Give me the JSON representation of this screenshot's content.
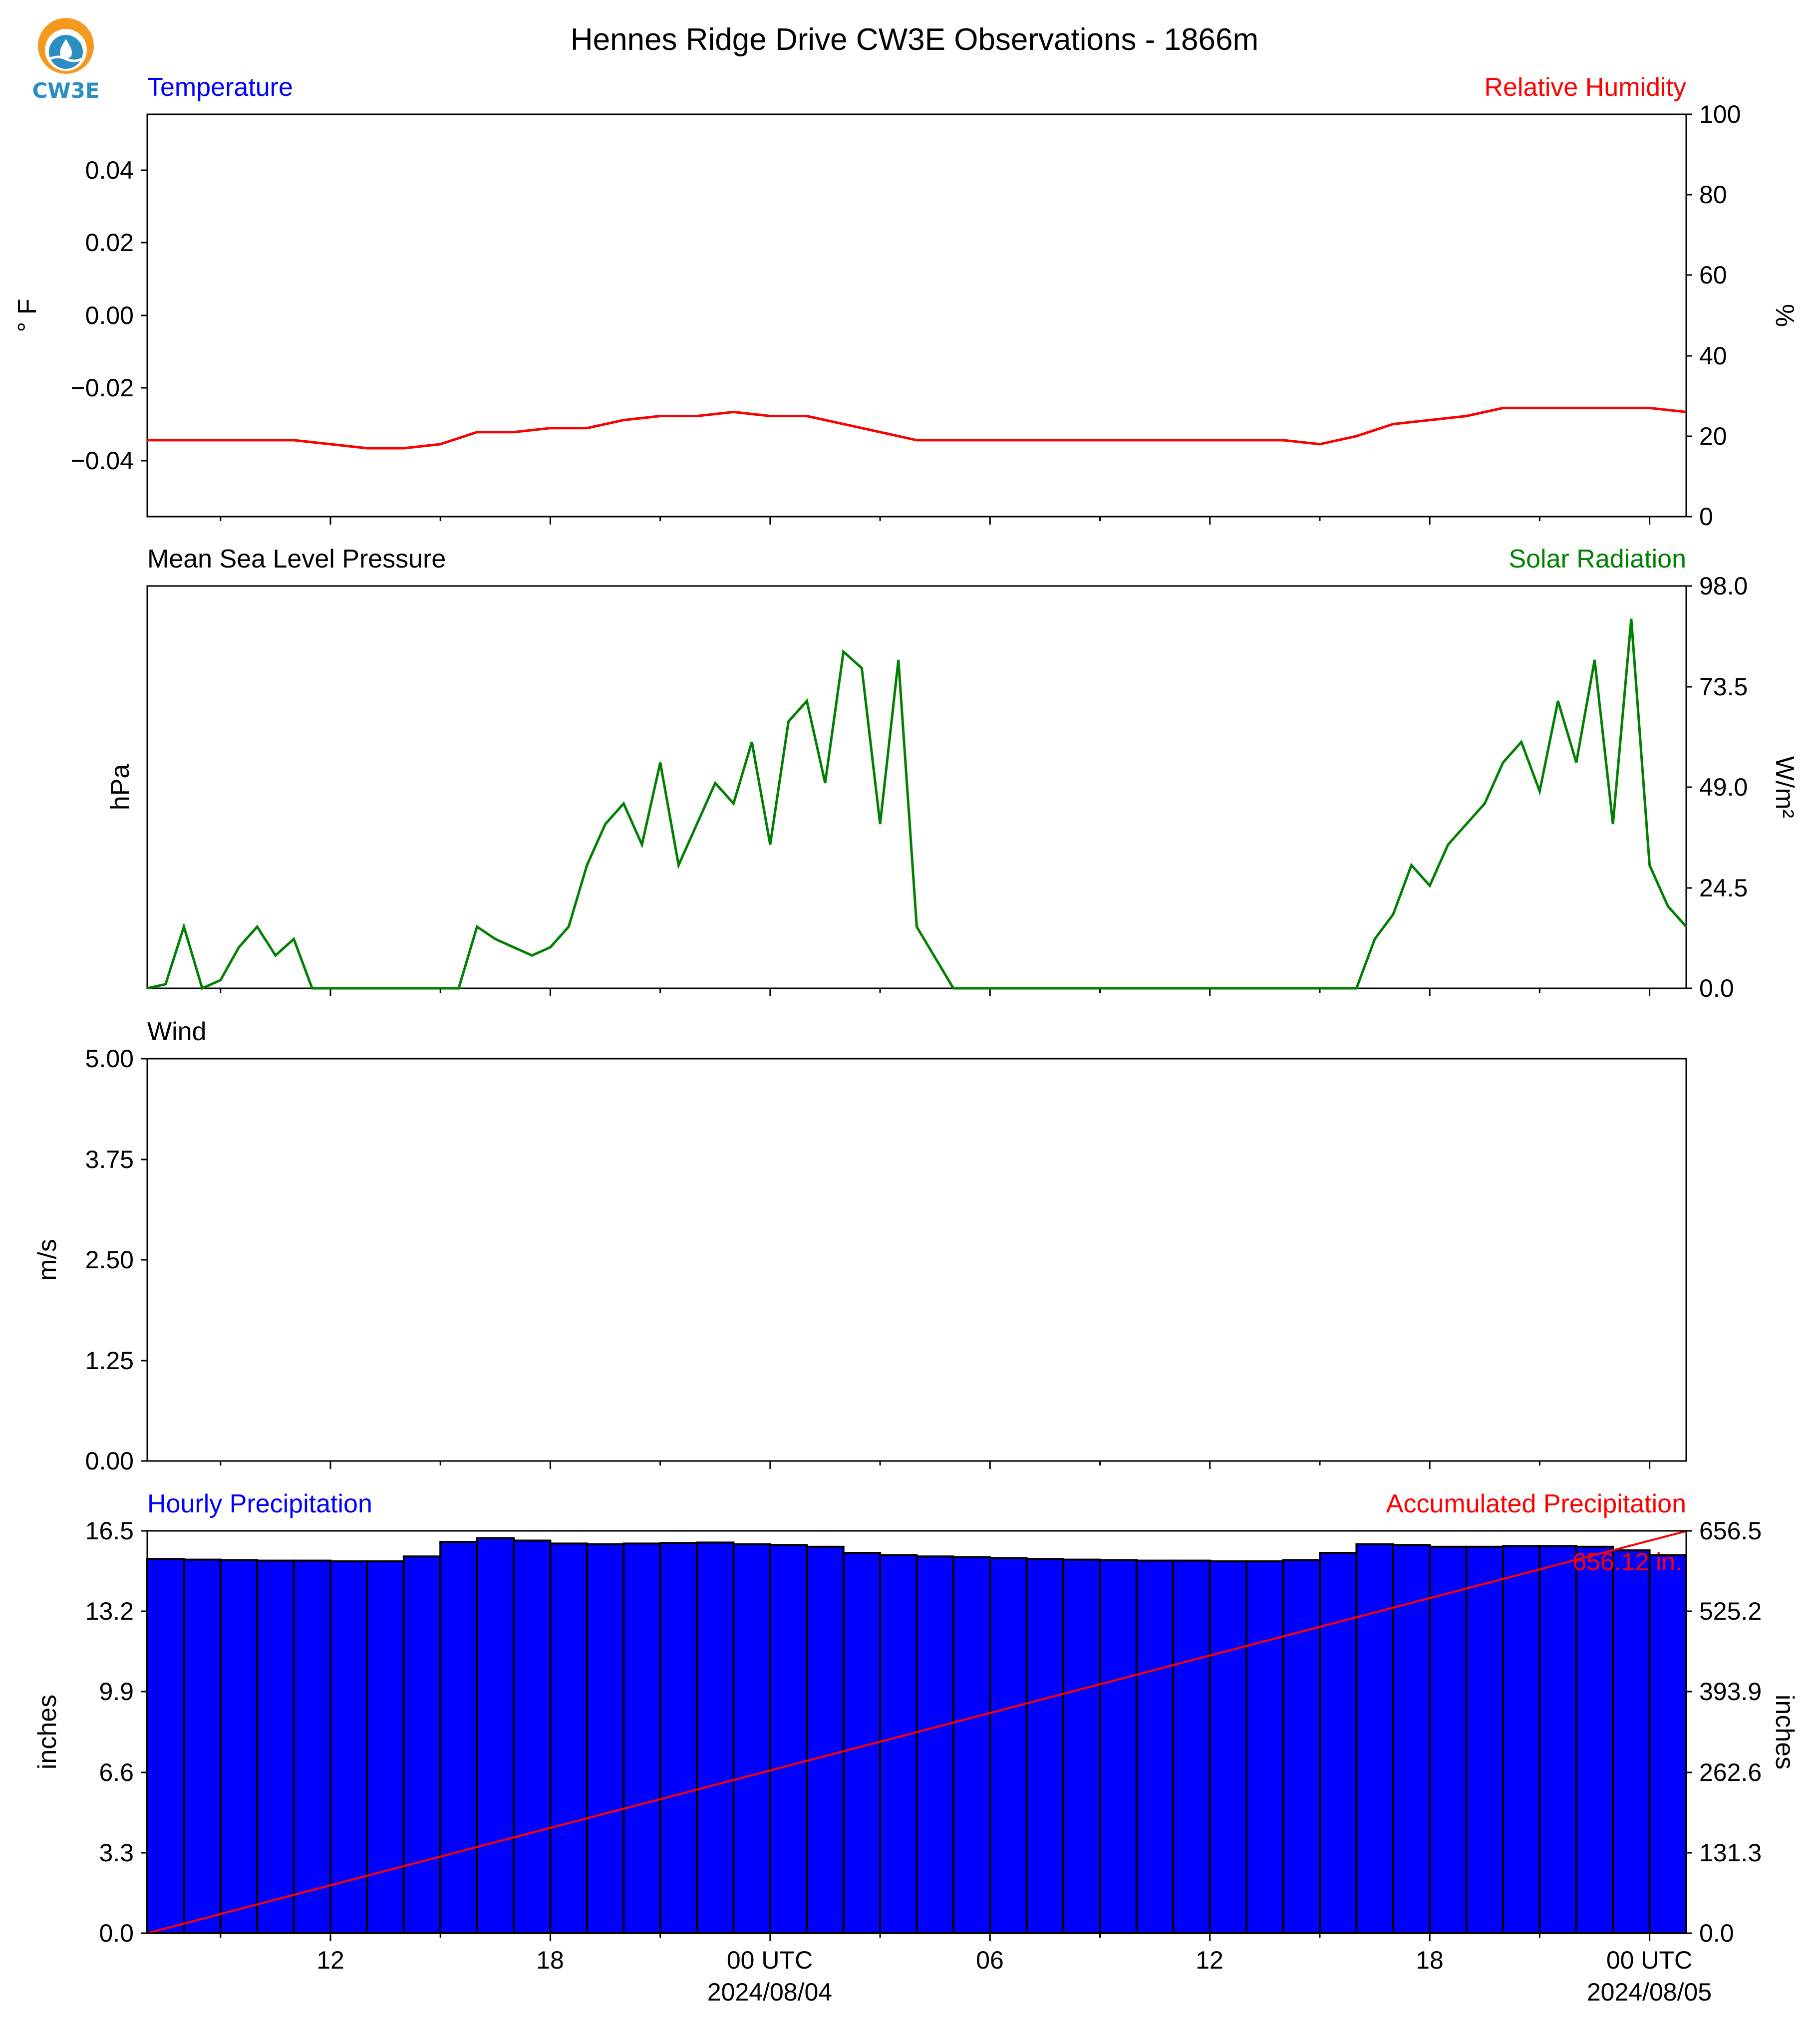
{
  "title": "Hennes Ridge Drive CW3E Observations - 1866m",
  "logo": {
    "text": "CW3E",
    "colors": {
      "sun": "#f39a1e",
      "water": "#2a8fc0",
      "text": "#2a8fc0"
    }
  },
  "colors": {
    "blue": "#0000ff",
    "red": "#ff0000",
    "green": "#008000",
    "black": "#000000",
    "bar_fill": "#0000ff",
    "bar_edge": "#000000"
  },
  "x_axis": {
    "ticks": [
      {
        "label": "12",
        "hour": 12
      },
      {
        "label": "18",
        "hour": 18
      },
      {
        "label": "00 UTC",
        "hour": 24,
        "date": "2024/08/04"
      },
      {
        "label": "06",
        "hour": 30
      },
      {
        "label": "12",
        "hour": 36
      },
      {
        "label": "18",
        "hour": 42
      },
      {
        "label": "00 UTC",
        "hour": 48,
        "date": "2024/08/05"
      }
    ],
    "range_hours": [
      7,
      49
    ]
  },
  "panels": {
    "temperature": {
      "left_title": "Temperature",
      "right_title": "Relative Humidity",
      "left_ylabel": "° F",
      "right_ylabel": "%",
      "left_ticks": [
        "0.04",
        "0.02",
        "0.00",
        "−0.02",
        "−0.04"
      ],
      "right_ticks": [
        "100",
        "80",
        "60",
        "40",
        "20",
        "0"
      ]
    },
    "pressure": {
      "left_title": "Mean Sea Level Pressure",
      "right_title": "Solar Radiation",
      "left_ylabel": "hPa",
      "right_ylabel": "W/m²",
      "right_ticks": [
        "98.0",
        "73.5",
        "49.0",
        "24.5",
        "0.0"
      ]
    },
    "wind": {
      "left_title": "Wind",
      "left_ylabel": "m/s",
      "left_ticks": [
        "5.00",
        "3.75",
        "2.50",
        "1.25",
        "0.00"
      ]
    },
    "precip": {
      "left_title": "Hourly Precipitation",
      "right_title": "Accumulated Precipitation",
      "left_ylabel": "inches",
      "right_ylabel": "inches",
      "left_ticks": [
        "16.5",
        "13.2",
        "9.9",
        "6.6",
        "3.3",
        "0.0"
      ],
      "right_ticks": [
        "656.5",
        "525.2",
        "393.9",
        "262.6",
        "131.3",
        "0.0"
      ],
      "accum_label": "656.12 in."
    }
  },
  "chart_data": [
    {
      "type": "line",
      "title": "Relative Humidity",
      "ylabel": "%",
      "ylim": [
        0,
        100
      ],
      "x_hours": [
        7,
        8,
        9,
        10,
        11,
        12,
        13,
        14,
        15,
        16,
        17,
        18,
        19,
        20,
        21,
        22,
        23,
        24,
        25,
        26,
        27,
        28,
        29,
        30,
        31,
        32,
        33,
        34,
        35,
        36,
        37,
        38,
        39,
        40,
        41,
        42,
        43,
        44,
        45,
        46,
        47,
        48,
        49
      ],
      "values": [
        19,
        19,
        19,
        19,
        19,
        18,
        17,
        17,
        18,
        21,
        21,
        22,
        22,
        24,
        25,
        25,
        26,
        25,
        25,
        23,
        21,
        19,
        19,
        19,
        19,
        19,
        19,
        19,
        19,
        19,
        19,
        19,
        18,
        20,
        23,
        24,
        25,
        27,
        27,
        27,
        27,
        27,
        26
      ]
    },
    {
      "type": "line",
      "title": "Solar Radiation",
      "ylabel": "W/m²",
      "ylim": [
        0,
        98
      ],
      "x_hours": [
        7,
        7.5,
        8,
        8.5,
        9,
        9.5,
        10,
        10.5,
        11,
        11.5,
        12,
        13,
        14,
        15,
        15.5,
        16,
        16.5,
        17,
        17.5,
        18,
        18.5,
        19,
        19.5,
        20,
        20.5,
        21,
        21.5,
        22,
        22.5,
        23,
        23.5,
        24,
        24.5,
        25,
        25.5,
        26,
        26.5,
        27,
        27.5,
        28,
        29,
        30,
        31,
        32,
        33,
        34,
        35,
        36,
        37,
        38,
        39,
        40,
        40.5,
        41,
        41.5,
        42,
        42.5,
        43,
        43.5,
        44,
        44.5,
        45,
        45.5,
        46,
        46.5,
        47,
        47.5,
        48,
        48.5,
        49
      ],
      "values": [
        0,
        1,
        15,
        0,
        2,
        10,
        15,
        8,
        12,
        0,
        0,
        0,
        0,
        0,
        0,
        15,
        12,
        10,
        8,
        10,
        15,
        30,
        40,
        45,
        35,
        55,
        30,
        40,
        50,
        45,
        60,
        35,
        65,
        70,
        50,
        82,
        78,
        40,
        80,
        15,
        0,
        0,
        0,
        0,
        0,
        0,
        0,
        0,
        0,
        0,
        0,
        0,
        12,
        18,
        30,
        25,
        35,
        40,
        45,
        55,
        60,
        48,
        70,
        55,
        80,
        40,
        90,
        30,
        20,
        15
      ]
    },
    {
      "type": "line",
      "title": "Wind",
      "ylabel": "m/s",
      "ylim": [
        0,
        5
      ],
      "series": []
    },
    {
      "type": "bar",
      "title": "Hourly Precipitation",
      "ylabel": "inches",
      "ylim": [
        0,
        16.5
      ],
      "x_hours": [
        7,
        8,
        9,
        10,
        11,
        12,
        13,
        14,
        15,
        16,
        17,
        18,
        19,
        20,
        21,
        22,
        23,
        24,
        25,
        26,
        27,
        28,
        29,
        30,
        31,
        32,
        33,
        34,
        35,
        36,
        37,
        38,
        39,
        40,
        41,
        42,
        43,
        44,
        45,
        46,
        47,
        48
      ],
      "values": [
        15.35,
        15.32,
        15.3,
        15.28,
        15.28,
        15.25,
        15.25,
        15.45,
        16.05,
        16.2,
        16.1,
        15.98,
        15.95,
        15.98,
        16.0,
        16.02,
        15.95,
        15.92,
        15.85,
        15.6,
        15.5,
        15.45,
        15.42,
        15.38,
        15.35,
        15.32,
        15.3,
        15.28,
        15.28,
        15.25,
        15.25,
        15.3,
        15.6,
        15.95,
        15.92,
        15.85,
        15.85,
        15.88,
        15.88,
        15.85,
        15.7,
        15.5
      ]
    },
    {
      "type": "line",
      "title": "Accumulated Precipitation",
      "ylabel": "inches",
      "ylim": [
        0,
        656.5
      ],
      "x_hours": [
        7,
        49
      ],
      "values": [
        0,
        656.12
      ]
    }
  ]
}
